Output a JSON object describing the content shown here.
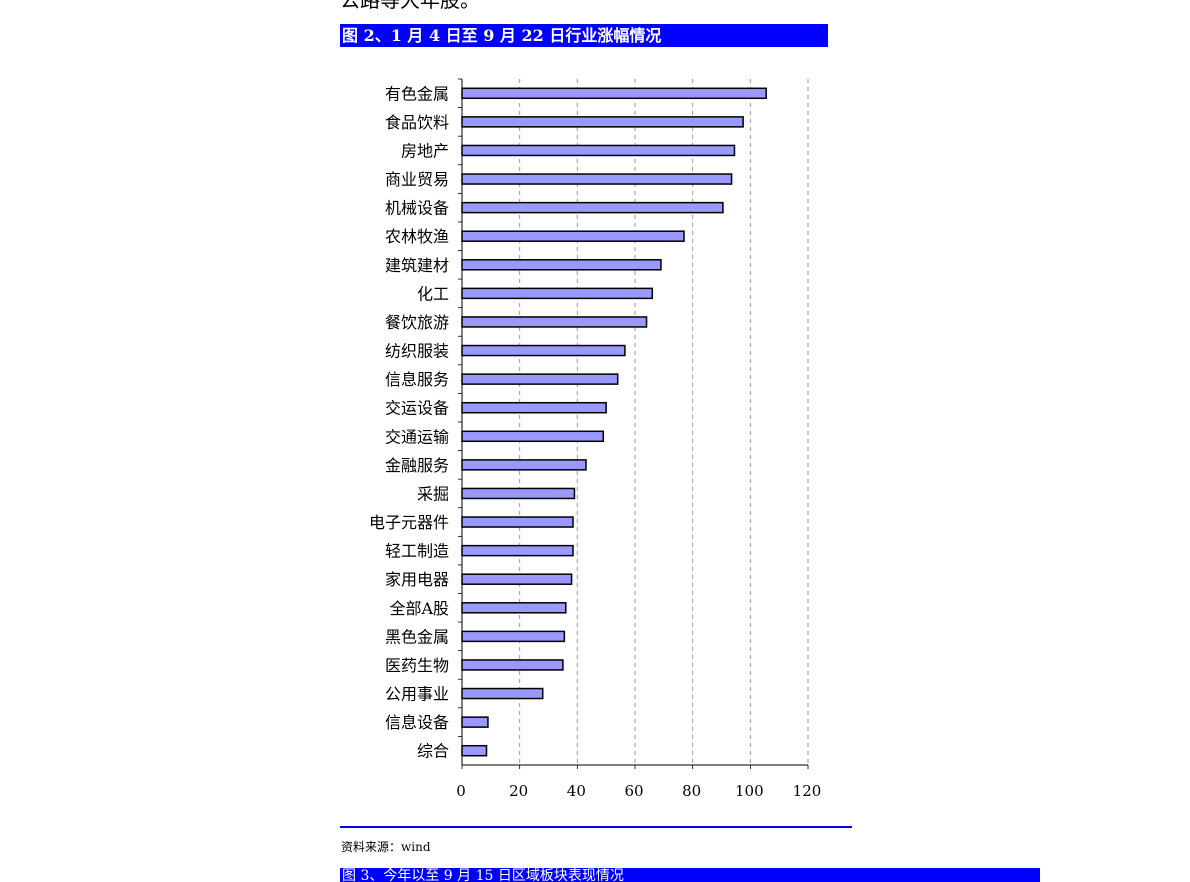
{
  "page": {
    "top_text": "公路等大年股。",
    "figure_title": "图 2、1 月 4 日至 9 月 22 日行业涨幅情况",
    "source": "资料来源：wind",
    "next_figure_title": "图 3、今年以至 9 月 15 日区域板块表现情况"
  },
  "chart_data": {
    "type": "bar",
    "orientation": "horizontal",
    "categories": [
      "有色金属",
      "食品饮料",
      "房地产",
      "商业贸易",
      "机械设备",
      "农林牧渔",
      "建筑建材",
      "化工",
      "餐饮旅游",
      "纺织服装",
      "信息服务",
      "交运设备",
      "交通运输",
      "金融服务",
      "采掘",
      "电子元器件",
      "轻工制造",
      "家用电器",
      "全部A股",
      "黑色金属",
      "医药生物",
      "公用事业",
      "信息设备",
      "综合"
    ],
    "values": [
      105.5,
      97.5,
      94.5,
      93.5,
      90.5,
      77,
      69,
      66,
      64,
      56.5,
      54,
      50,
      49,
      43,
      39,
      38.5,
      38.5,
      38,
      36,
      35.5,
      35,
      28,
      9,
      8.5
    ],
    "xlim": [
      0,
      120
    ],
    "xticks": [
      "0",
      "20",
      "40",
      "60",
      "80",
      "100",
      "120"
    ],
    "grid": "vertical dashed",
    "colors": {
      "bar_fill": "#9999ff",
      "bar_stroke": "#000000",
      "grid": "#999999"
    }
  }
}
